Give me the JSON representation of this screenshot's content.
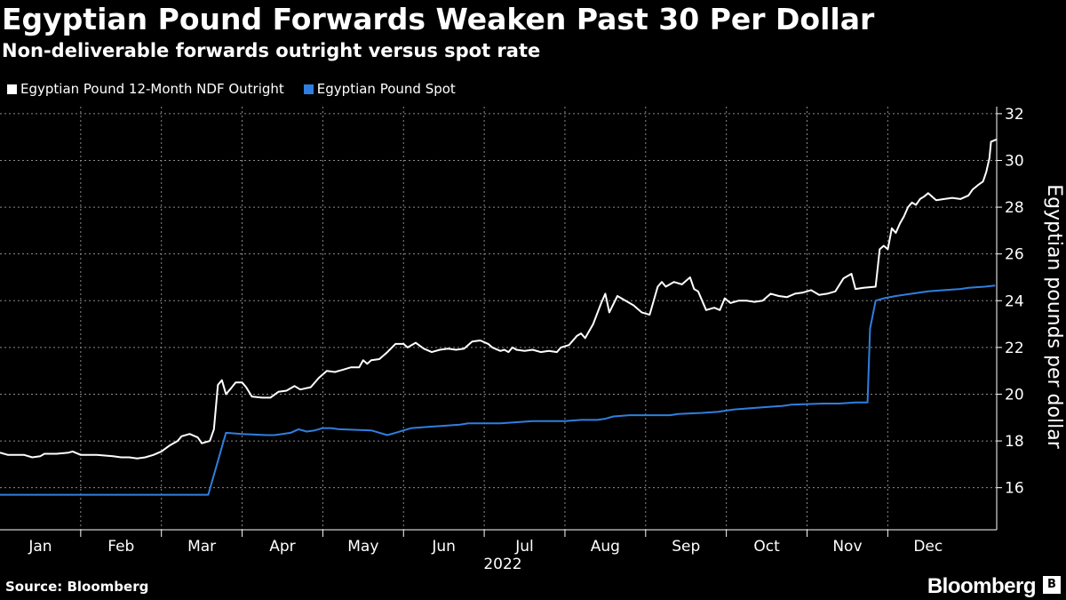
{
  "title": "Egyptian Pound Forwards Weaken Past 30 Per Dollar",
  "subtitle": "Non-deliverable forwards outright versus spot rate",
  "source": "Source: Bloomberg",
  "brand": "Bloomberg",
  "brand_icon": "B",
  "colors": {
    "ndf": "#ffffff",
    "spot": "#2f7fe0",
    "grid": "#8a8a8a",
    "background": "#000000"
  },
  "chart_data": {
    "type": "line",
    "title": "Egyptian Pound Forwards Weaken Past 30 Per Dollar",
    "subtitle": "Non-deliverable forwards outright versus spot rate",
    "xlabel": "2022",
    "ylabel": "Egyptian pounds per dollar",
    "ylim": [
      14.2,
      32.3
    ],
    "yticks": [
      16,
      18,
      20,
      22,
      24,
      26,
      28,
      30,
      32
    ],
    "xlim": [
      0,
      12.35
    ],
    "month_labels": [
      "Jan",
      "Feb",
      "Mar",
      "Apr",
      "May",
      "Jun",
      "Jul",
      "Aug",
      "Sep",
      "Oct",
      "Nov",
      "Dec"
    ],
    "year_label": "2022",
    "legend_position": "top-left",
    "series": [
      {
        "name": "Egyptian Pound 12-Month NDF Outright",
        "color": "#ffffff",
        "points": [
          [
            0.0,
            17.5
          ],
          [
            0.1,
            17.4
          ],
          [
            0.3,
            17.4
          ],
          [
            0.4,
            17.3
          ],
          [
            0.5,
            17.35
          ],
          [
            0.55,
            17.45
          ],
          [
            0.7,
            17.45
          ],
          [
            0.85,
            17.5
          ],
          [
            0.9,
            17.55
          ],
          [
            1.0,
            17.4
          ],
          [
            1.2,
            17.4
          ],
          [
            1.4,
            17.35
          ],
          [
            1.5,
            17.3
          ],
          [
            1.6,
            17.3
          ],
          [
            1.7,
            17.25
          ],
          [
            1.8,
            17.3
          ],
          [
            1.9,
            17.4
          ],
          [
            2.0,
            17.55
          ],
          [
            2.1,
            17.8
          ],
          [
            2.2,
            18.0
          ],
          [
            2.25,
            18.2
          ],
          [
            2.35,
            18.3
          ],
          [
            2.45,
            18.15
          ],
          [
            2.5,
            17.9
          ],
          [
            2.6,
            18.0
          ],
          [
            2.65,
            18.5
          ],
          [
            2.7,
            20.4
          ],
          [
            2.75,
            20.6
          ],
          [
            2.8,
            20.0
          ],
          [
            2.85,
            20.2
          ],
          [
            2.92,
            20.5
          ],
          [
            3.0,
            20.5
          ],
          [
            3.05,
            20.3
          ],
          [
            3.12,
            19.9
          ],
          [
            3.25,
            19.85
          ],
          [
            3.35,
            19.85
          ],
          [
            3.45,
            20.1
          ],
          [
            3.55,
            20.15
          ],
          [
            3.65,
            20.35
          ],
          [
            3.72,
            20.2
          ],
          [
            3.85,
            20.3
          ],
          [
            3.95,
            20.7
          ],
          [
            4.05,
            21.0
          ],
          [
            4.15,
            20.95
          ],
          [
            4.25,
            21.05
          ],
          [
            4.35,
            21.15
          ],
          [
            4.45,
            21.15
          ],
          [
            4.5,
            21.45
          ],
          [
            4.55,
            21.3
          ],
          [
            4.6,
            21.45
          ],
          [
            4.7,
            21.5
          ],
          [
            4.8,
            21.8
          ],
          [
            4.9,
            22.15
          ],
          [
            5.0,
            22.15
          ],
          [
            5.05,
            22.0
          ],
          [
            5.15,
            22.2
          ],
          [
            5.25,
            21.95
          ],
          [
            5.35,
            21.8
          ],
          [
            5.45,
            21.9
          ],
          [
            5.55,
            21.95
          ],
          [
            5.65,
            21.9
          ],
          [
            5.75,
            21.95
          ],
          [
            5.85,
            22.25
          ],
          [
            5.95,
            22.3
          ],
          [
            6.05,
            22.15
          ],
          [
            6.1,
            22.0
          ],
          [
            6.2,
            21.85
          ],
          [
            6.25,
            21.9
          ],
          [
            6.3,
            21.8
          ],
          [
            6.35,
            22.0
          ],
          [
            6.4,
            21.9
          ],
          [
            6.5,
            21.85
          ],
          [
            6.6,
            21.9
          ],
          [
            6.7,
            21.8
          ],
          [
            6.8,
            21.85
          ],
          [
            6.9,
            21.8
          ],
          [
            6.95,
            22.0
          ],
          [
            7.05,
            22.1
          ],
          [
            7.15,
            22.5
          ],
          [
            7.2,
            22.6
          ],
          [
            7.25,
            22.4
          ],
          [
            7.35,
            23.0
          ],
          [
            7.45,
            23.9
          ],
          [
            7.5,
            24.3
          ],
          [
            7.55,
            23.5
          ],
          [
            7.65,
            24.2
          ],
          [
            7.75,
            24.0
          ],
          [
            7.85,
            23.8
          ],
          [
            7.95,
            23.5
          ],
          [
            8.05,
            23.4
          ],
          [
            8.15,
            24.6
          ],
          [
            8.2,
            24.8
          ],
          [
            8.25,
            24.6
          ],
          [
            8.35,
            24.8
          ],
          [
            8.45,
            24.7
          ],
          [
            8.55,
            25.0
          ],
          [
            8.6,
            24.5
          ],
          [
            8.65,
            24.4
          ],
          [
            8.75,
            23.6
          ],
          [
            8.85,
            23.7
          ],
          [
            8.92,
            23.6
          ],
          [
            8.98,
            24.1
          ],
          [
            9.05,
            23.9
          ],
          [
            9.15,
            24.0
          ],
          [
            9.25,
            24.0
          ],
          [
            9.35,
            23.95
          ],
          [
            9.45,
            24.0
          ],
          [
            9.55,
            24.3
          ],
          [
            9.65,
            24.2
          ],
          [
            9.75,
            24.15
          ],
          [
            9.85,
            24.3
          ],
          [
            9.95,
            24.35
          ],
          [
            10.05,
            24.45
          ],
          [
            10.15,
            24.25
          ],
          [
            10.25,
            24.3
          ],
          [
            10.35,
            24.4
          ],
          [
            10.45,
            24.95
          ],
          [
            10.55,
            25.15
          ],
          [
            10.6,
            24.5
          ],
          [
            10.7,
            24.55
          ],
          [
            10.85,
            24.6
          ],
          [
            10.9,
            26.2
          ],
          [
            10.95,
            26.35
          ],
          [
            11.0,
            26.2
          ],
          [
            11.05,
            27.1
          ],
          [
            11.1,
            26.9
          ],
          [
            11.15,
            27.3
          ],
          [
            11.2,
            27.6
          ],
          [
            11.25,
            28.0
          ],
          [
            11.3,
            28.2
          ],
          [
            11.35,
            28.1
          ],
          [
            11.4,
            28.35
          ],
          [
            11.45,
            28.45
          ],
          [
            11.5,
            28.6
          ],
          [
            11.55,
            28.45
          ],
          [
            11.6,
            28.3
          ],
          [
            11.7,
            28.35
          ],
          [
            11.8,
            28.4
          ],
          [
            11.9,
            28.35
          ],
          [
            12.0,
            28.5
          ],
          [
            12.05,
            28.75
          ],
          [
            12.12,
            28.95
          ],
          [
            12.18,
            29.1
          ],
          [
            12.22,
            29.5
          ],
          [
            12.26,
            30.1
          ],
          [
            12.28,
            30.8
          ],
          [
            12.35,
            30.9
          ]
        ]
      },
      {
        "name": "Egyptian Pound Spot",
        "color": "#2f7fe0",
        "points": [
          [
            0.0,
            15.7
          ],
          [
            2.58,
            15.7
          ],
          [
            2.8,
            18.35
          ],
          [
            3.0,
            18.3
          ],
          [
            3.3,
            18.25
          ],
          [
            3.4,
            18.25
          ],
          [
            3.5,
            18.3
          ],
          [
            3.6,
            18.35
          ],
          [
            3.7,
            18.5
          ],
          [
            3.8,
            18.4
          ],
          [
            3.9,
            18.45
          ],
          [
            4.0,
            18.55
          ],
          [
            4.1,
            18.55
          ],
          [
            4.2,
            18.5
          ],
          [
            4.6,
            18.45
          ],
          [
            4.8,
            18.25
          ],
          [
            4.9,
            18.35
          ],
          [
            5.0,
            18.45
          ],
          [
            5.1,
            18.55
          ],
          [
            5.3,
            18.6
          ],
          [
            5.5,
            18.65
          ],
          [
            5.7,
            18.7
          ],
          [
            5.8,
            18.75
          ],
          [
            6.2,
            18.75
          ],
          [
            6.4,
            18.8
          ],
          [
            6.6,
            18.85
          ],
          [
            7.0,
            18.85
          ],
          [
            7.2,
            18.9
          ],
          [
            7.4,
            18.9
          ],
          [
            7.5,
            18.95
          ],
          [
            7.6,
            19.05
          ],
          [
            7.8,
            19.1
          ],
          [
            8.3,
            19.1
          ],
          [
            8.4,
            19.15
          ],
          [
            8.7,
            19.2
          ],
          [
            8.9,
            19.25
          ],
          [
            9.0,
            19.3
          ],
          [
            9.1,
            19.35
          ],
          [
            9.3,
            19.4
          ],
          [
            9.5,
            19.45
          ],
          [
            9.7,
            19.5
          ],
          [
            9.8,
            19.55
          ],
          [
            10.2,
            19.6
          ],
          [
            10.4,
            19.6
          ],
          [
            10.6,
            19.65
          ],
          [
            10.75,
            19.65
          ],
          [
            10.78,
            22.8
          ],
          [
            10.85,
            24.0
          ],
          [
            10.95,
            24.1
          ],
          [
            11.1,
            24.2
          ],
          [
            11.3,
            24.3
          ],
          [
            11.5,
            24.4
          ],
          [
            11.7,
            24.45
          ],
          [
            11.9,
            24.5
          ],
          [
            12.0,
            24.55
          ],
          [
            12.2,
            24.6
          ],
          [
            12.33,
            24.65
          ]
        ]
      }
    ]
  }
}
